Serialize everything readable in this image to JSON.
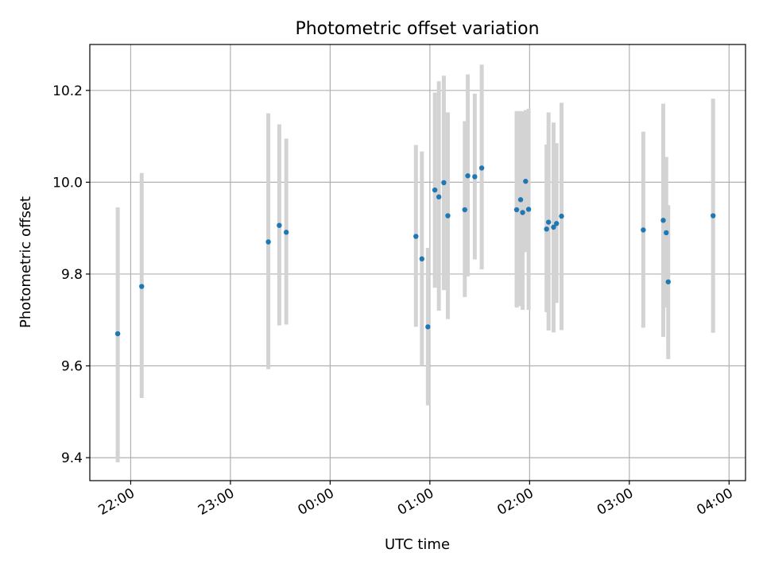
{
  "chart_data": {
    "type": "scatter",
    "title": "Photometric offset variation",
    "xlabel": "UTC time",
    "ylabel": "Photometric offset",
    "x_unit": "hours",
    "xlim": [
      21.59,
      28.165
    ],
    "ylim": [
      9.35,
      10.3
    ],
    "x_ticks": [
      {
        "value": 22,
        "label": "22:00"
      },
      {
        "value": 23,
        "label": "23:00"
      },
      {
        "value": 24,
        "label": "00:00"
      },
      {
        "value": 25,
        "label": "01:00"
      },
      {
        "value": 26,
        "label": "02:00"
      },
      {
        "value": 27,
        "label": "03:00"
      },
      {
        "value": 28,
        "label": "04:00"
      }
    ],
    "y_ticks": [
      {
        "value": 9.4,
        "label": "9.4"
      },
      {
        "value": 9.6,
        "label": "9.6"
      },
      {
        "value": 9.8,
        "label": "9.8"
      },
      {
        "value": 10.0,
        "label": "10.0"
      },
      {
        "value": 10.2,
        "label": "10.2"
      }
    ],
    "grid": true,
    "colors": {
      "point": "#1f77b4",
      "errorbar": "#d3d3d3",
      "grid": "#b0b0b0"
    },
    "points": [
      {
        "x": 21.87,
        "y": 9.67,
        "lo": 9.39,
        "hi": 9.945
      },
      {
        "x": 22.11,
        "y": 9.773,
        "lo": 9.53,
        "hi": 10.02
      },
      {
        "x": 23.38,
        "y": 9.87,
        "lo": 9.593,
        "hi": 10.15
      },
      {
        "x": 23.49,
        "y": 9.906,
        "lo": 9.688,
        "hi": 10.126
      },
      {
        "x": 23.56,
        "y": 9.891,
        "lo": 9.69,
        "hi": 10.095
      },
      {
        "x": 24.86,
        "y": 9.882,
        "lo": 9.685,
        "hi": 10.081
      },
      {
        "x": 24.92,
        "y": 9.833,
        "lo": 9.6,
        "hi": 10.067
      },
      {
        "x": 24.98,
        "y": 9.685,
        "lo": 9.514,
        "hi": 9.857
      },
      {
        "x": 25.05,
        "y": 9.983,
        "lo": 9.77,
        "hi": 10.195
      },
      {
        "x": 25.09,
        "y": 9.968,
        "lo": 9.72,
        "hi": 10.22
      },
      {
        "x": 25.14,
        "y": 9.999,
        "lo": 9.765,
        "hi": 10.232
      },
      {
        "x": 25.18,
        "y": 9.927,
        "lo": 9.702,
        "hi": 10.152
      },
      {
        "x": 25.35,
        "y": 9.94,
        "lo": 9.75,
        "hi": 10.133
      },
      {
        "x": 25.38,
        "y": 10.014,
        "lo": 9.795,
        "hi": 10.235
      },
      {
        "x": 25.45,
        "y": 10.012,
        "lo": 9.832,
        "hi": 10.193
      },
      {
        "x": 25.52,
        "y": 10.031,
        "lo": 9.81,
        "hi": 10.256
      },
      {
        "x": 25.87,
        "y": 9.94,
        "lo": 9.727,
        "hi": 10.155
      },
      {
        "x": 25.91,
        "y": 9.962,
        "lo": 9.73,
        "hi": 10.155
      },
      {
        "x": 25.93,
        "y": 9.934,
        "lo": 9.722,
        "hi": 10.154
      },
      {
        "x": 25.96,
        "y": 10.002,
        "lo": 9.848,
        "hi": 10.157
      },
      {
        "x": 25.99,
        "y": 9.941,
        "lo": 9.722,
        "hi": 10.16
      },
      {
        "x": 26.17,
        "y": 9.898,
        "lo": 9.717,
        "hi": 10.082
      },
      {
        "x": 26.19,
        "y": 9.913,
        "lo": 9.677,
        "hi": 10.152
      },
      {
        "x": 26.24,
        "y": 9.902,
        "lo": 9.673,
        "hi": 10.13
      },
      {
        "x": 26.27,
        "y": 9.91,
        "lo": 9.737,
        "hi": 10.085
      },
      {
        "x": 26.32,
        "y": 9.926,
        "lo": 9.678,
        "hi": 10.173
      },
      {
        "x": 27.14,
        "y": 9.896,
        "lo": 9.683,
        "hi": 10.11
      },
      {
        "x": 27.34,
        "y": 9.917,
        "lo": 9.663,
        "hi": 10.171
      },
      {
        "x": 27.37,
        "y": 9.89,
        "lo": 9.727,
        "hi": 10.055
      },
      {
        "x": 27.39,
        "y": 9.783,
        "lo": 9.615,
        "hi": 9.95
      },
      {
        "x": 27.84,
        "y": 9.927,
        "lo": 9.672,
        "hi": 10.182
      }
    ]
  }
}
